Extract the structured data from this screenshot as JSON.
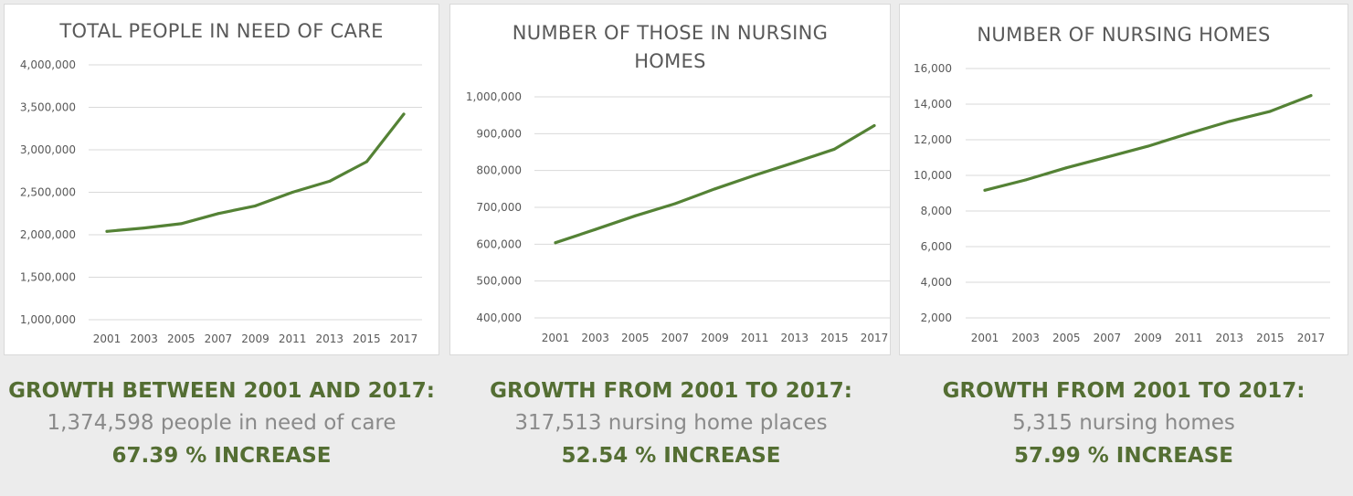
{
  "colors": {
    "line": "#548235",
    "grid": "#d9d9d9",
    "accent": "#546e33",
    "muted": "#8a8a8a"
  },
  "chart_data": [
    {
      "type": "line",
      "title": "TOTAL PEOPLE IN NEED OF CARE",
      "categories": [
        "2001",
        "2003",
        "2005",
        "2007",
        "2009",
        "2011",
        "2013",
        "2015",
        "2017"
      ],
      "values": [
        2040000,
        2080000,
        2130000,
        2250000,
        2340000,
        2500000,
        2630000,
        2860000,
        3420000
      ],
      "ylim": [
        1000000,
        4000000
      ],
      "yticks": [
        "1,000,000",
        "1,500,000",
        "2,000,000",
        "2,500,000",
        "3,000,000",
        "3,500,000",
        "4,000,000"
      ],
      "grid": true,
      "legend": "none"
    },
    {
      "type": "line",
      "title": "NUMBER OF THOSE IN NURSING HOMES",
      "categories": [
        "2001",
        "2003",
        "2005",
        "2007",
        "2009",
        "2011",
        "2013",
        "2015",
        "2017"
      ],
      "values": [
        604000,
        640000,
        677000,
        710000,
        750000,
        787000,
        822000,
        858000,
        922000
      ],
      "ylim": [
        400000,
        1000000
      ],
      "yticks": [
        "400,000",
        "500,000",
        "600,000",
        "700,000",
        "800,000",
        "900,000",
        "1,000,000"
      ],
      "grid": true,
      "legend": "none"
    },
    {
      "type": "line",
      "title": "NUMBER OF NURSING HOMES",
      "categories": [
        "2001",
        "2003",
        "2005",
        "2007",
        "2009",
        "2011",
        "2013",
        "2015",
        "2017"
      ],
      "values": [
        9165,
        9743,
        10424,
        11029,
        11634,
        12354,
        13030,
        13596,
        14480
      ],
      "ylim": [
        2000,
        16000
      ],
      "yticks": [
        "2,000",
        "4,000",
        "6,000",
        "8,000",
        "10,000",
        "12,000",
        "14,000",
        "16,000"
      ],
      "grid": true,
      "legend": "none"
    }
  ],
  "charts": [
    {
      "title_lines": [
        "TOTAL PEOPLE IN NEED OF CARE"
      ]
    },
    {
      "title_lines": [
        "NUMBER OF THOSE IN NURSING",
        "HOMES"
      ]
    },
    {
      "title_lines": [
        "NUMBER OF NURSING HOMES"
      ]
    }
  ],
  "captions": [
    {
      "heading": "GROWTH BETWEEN 2001 AND 2017:",
      "body": "1,374,598 people in need of care",
      "percent": "67.39 % INCREASE"
    },
    {
      "heading": "GROWTH FROM 2001 TO 2017:",
      "body": "317,513 nursing home places",
      "percent": "52.54 % INCREASE"
    },
    {
      "heading": "GROWTH FROM 2001 TO 2017:",
      "body": "5,315 nursing homes",
      "percent": "57.99 % INCREASE"
    }
  ]
}
